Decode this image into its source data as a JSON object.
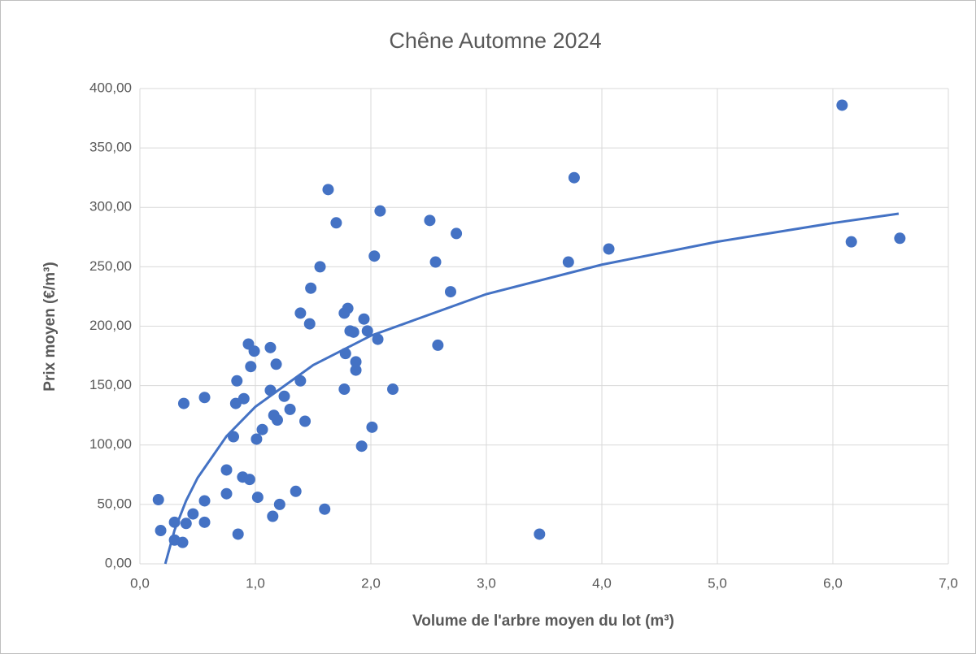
{
  "chart_data": {
    "type": "scatter",
    "title": "Chêne Automne 2024",
    "x_label": "Volume de l'arbre moyen du lot (m³)",
    "y_label": "Prix moyen (€/m³)",
    "color": "#4472c4",
    "grid": true,
    "xlim": [
      0,
      7
    ],
    "ylim": [
      0,
      400
    ],
    "xticks": [
      {
        "value": 0,
        "label": "0,0"
      },
      {
        "value": 1,
        "label": "1,0"
      },
      {
        "value": 2,
        "label": "2,0"
      },
      {
        "value": 3,
        "label": "3,0"
      },
      {
        "value": 4,
        "label": "4,0"
      },
      {
        "value": 5,
        "label": "5,0"
      },
      {
        "value": 6,
        "label": "6,0"
      },
      {
        "value": 7,
        "label": "7,0"
      }
    ],
    "yticks": [
      {
        "value": 0,
        "label": "0,00"
      },
      {
        "value": 50,
        "label": "50,00"
      },
      {
        "value": 100,
        "label": "100,00"
      },
      {
        "value": 150,
        "label": "150,00"
      },
      {
        "value": 200,
        "label": "200,00"
      },
      {
        "value": 250,
        "label": "250,00"
      },
      {
        "value": 300,
        "label": "300,00"
      },
      {
        "value": 350,
        "label": "350,00"
      },
      {
        "value": 400,
        "label": "400,00"
      }
    ],
    "x": [
      0.16,
      0.18,
      0.3,
      0.3,
      0.37,
      0.38,
      0.4,
      0.46,
      0.56,
      0.56,
      0.56,
      0.75,
      0.75,
      0.81,
      0.83,
      0.84,
      0.85,
      0.89,
      0.9,
      0.94,
      0.95,
      0.96,
      0.99,
      1.01,
      1.02,
      1.06,
      1.13,
      1.13,
      1.15,
      1.16,
      1.18,
      1.19,
      1.21,
      1.25,
      1.3,
      1.35,
      1.39,
      1.39,
      1.43,
      1.47,
      1.48,
      1.56,
      1.6,
      1.63,
      1.7,
      1.77,
      1.77,
      1.78,
      1.8,
      1.82,
      1.85,
      1.87,
      1.87,
      1.92,
      1.94,
      1.97,
      2.01,
      2.03,
      2.06,
      2.08,
      2.19,
      2.51,
      2.56,
      2.58,
      2.69,
      2.74,
      3.46,
      3.71,
      3.76,
      4.06,
      6.08,
      6.16,
      6.58
    ],
    "values": [
      54,
      28,
      35,
      20,
      18,
      135,
      34,
      42,
      53,
      35,
      140,
      59,
      79,
      107,
      135,
      154,
      25,
      73,
      139,
      185,
      71,
      166,
      179,
      105,
      56,
      113,
      146,
      182,
      40,
      125,
      168,
      121,
      50,
      141,
      130,
      61,
      154,
      211,
      120,
      202,
      232,
      250,
      46,
      315,
      287,
      147,
      211,
      177,
      215,
      196,
      195,
      170,
      163,
      99,
      206,
      196,
      115,
      259,
      189,
      297,
      147,
      289,
      254,
      184,
      229,
      278,
      25,
      254,
      325,
      265,
      386,
      271,
      274
    ],
    "trendline": {
      "color": "#4472c4",
      "x": [
        0.22,
        0.3,
        0.4,
        0.5,
        0.75,
        1.0,
        1.5,
        2.0,
        3.0,
        4.0,
        5.0,
        6.0,
        6.57
      ],
      "values": [
        0,
        28.3,
        53.1,
        72.4,
        107.4,
        132.2,
        167.2,
        192.0,
        227.0,
        251.8,
        271.1,
        286.8,
        294.7
      ]
    }
  }
}
